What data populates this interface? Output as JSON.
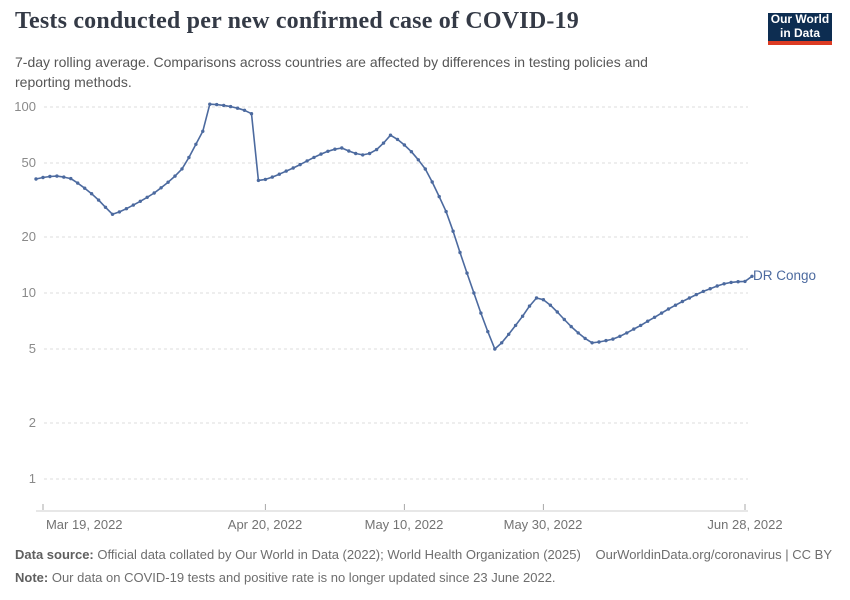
{
  "header": {
    "title": "Tests conducted per new confirmed case of COVID-19",
    "subtitle": "7-day rolling average. Comparisons across countries are affected by differences in testing policies and reporting methods.",
    "logo": {
      "line1": "Our World",
      "line2": "in Data",
      "bg_color": "#0d2d51",
      "accent_color": "#dc3b23"
    }
  },
  "chart_data": {
    "type": "line",
    "title": "Tests conducted per new confirmed case of COVID-19",
    "y_scale": "log",
    "ylim": [
      1,
      110
    ],
    "grid": "horizontal-dashed",
    "y_ticks": [
      100,
      50,
      20,
      10,
      5,
      2,
      1
    ],
    "x_tick_labels": [
      "Mar 19, 2022",
      "Apr 20, 2022",
      "May 10, 2022",
      "May 30, 2022",
      "Jun 28, 2022"
    ],
    "x_tick_days": [
      1,
      33,
      53,
      73,
      102
    ],
    "x_start": "Mar 18, 2022",
    "x_end": "Jun 29, 2022",
    "frequency": "daily",
    "legend_position": "end-of-line",
    "series": [
      {
        "name": "DR Congo",
        "color": "#4c6a9f",
        "values": [
          41.0,
          41.8,
          42.3,
          42.5,
          42.0,
          41.2,
          39.0,
          36.6,
          34.2,
          31.6,
          28.9,
          26.5,
          27.3,
          28.4,
          29.7,
          31.1,
          32.7,
          34.5,
          36.8,
          39.4,
          42.5,
          46.5,
          53.5,
          63.0,
          74.0,
          103.5,
          103.0,
          102.0,
          100.5,
          98.5,
          96.0,
          92.0,
          40.3,
          40.8,
          42.0,
          43.5,
          45.2,
          47.0,
          49.0,
          51.3,
          53.6,
          55.8,
          57.8,
          59.3,
          60.2,
          58.0,
          56.2,
          55.3,
          56.2,
          59.0,
          64.0,
          70.5,
          67.0,
          62.5,
          57.5,
          52.0,
          46.4,
          39.5,
          33.0,
          27.4,
          21.5,
          16.5,
          12.8,
          10.0,
          7.8,
          6.2,
          5.0,
          5.4,
          6.0,
          6.7,
          7.5,
          8.5,
          9.4,
          9.2,
          8.6,
          7.9,
          7.2,
          6.6,
          6.1,
          5.7,
          5.4,
          5.45,
          5.55,
          5.65,
          5.85,
          6.1,
          6.4,
          6.7,
          7.05,
          7.4,
          7.8,
          8.2,
          8.6,
          9.0,
          9.4,
          9.8,
          10.2,
          10.55,
          10.9,
          11.2,
          11.4,
          11.5,
          11.55,
          12.3
        ]
      }
    ]
  },
  "footer": {
    "source_label": "Data source:",
    "source_text": " Official data collated by Our World in Data (2022); World Health Organization (2025)",
    "link_text": "OurWorldinData.org/coronavirus | CC BY",
    "note_label": "Note:",
    "note_text": " Our data on COVID-19 tests and positive rate is no longer updated since 23 June 2022."
  }
}
